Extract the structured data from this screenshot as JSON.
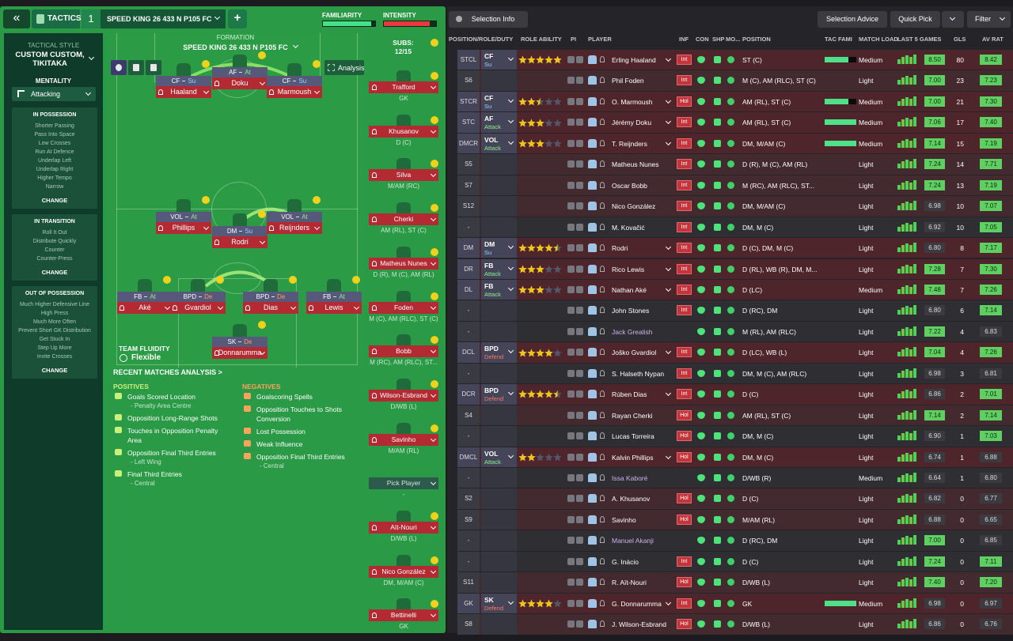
{
  "header": {
    "back": "«",
    "tactics": "TACTICS",
    "number": "1",
    "tactic_name": "SPEED KING 26 433 N P105 FC",
    "add": "+",
    "familiarity": "FAMILIARITY",
    "familiarity_value": 92,
    "intensity": "INTENSITY",
    "intensity_value": 88
  },
  "sidebar": {
    "style_label": "TACTICAL STYLE",
    "style": "CUSTOM CUSTOM, TIKITAKA",
    "mentality_label": "MENTALITY",
    "mentality": "Attacking",
    "sections": [
      {
        "title": "IN POSSESSION",
        "items": [
          "Shorter Passing",
          "Pass Into Space",
          "Low Crosses",
          "Run At Defence",
          "Underlap Left",
          "Underlap Right",
          "Higher Tempo",
          "Narrow"
        ],
        "change": "CHANGE"
      },
      {
        "title": "IN TRANSITION",
        "items": [
          "Roll It Out",
          "Distribute Quickly",
          "Counter",
          "Counter-Press"
        ],
        "change": "CHANGE"
      },
      {
        "title": "OUT OF POSSESSION",
        "items": [
          "Much Higher Defensive Line",
          "High Press",
          "Much More Often",
          "Prevent Short GK Distribution",
          "Get Stuck In",
          "Step Up More",
          "Invite Crosses"
        ],
        "change": "CHANGE"
      }
    ]
  },
  "pitch": {
    "formation_label": "FORMATION",
    "formation": "SPEED KING 26 433 N P105 FC",
    "analysis": "Analysis",
    "subs_label": "SUBS:",
    "subs_count": "12/15",
    "fluidity_label": "TEAM FLUIDITY",
    "fluidity": "Flexible",
    "players": [
      {
        "role": "CF",
        "duty": "Su",
        "name": "Haaland"
      },
      {
        "role": "AF",
        "duty": "At",
        "name": "Doku"
      },
      {
        "role": "CF",
        "duty": "Su",
        "name": "Marmoush"
      },
      {
        "role": "VOL",
        "duty": "At",
        "name": "Phillips"
      },
      {
        "role": "DM",
        "duty": "Su",
        "name": "Rodri"
      },
      {
        "role": "VOL",
        "duty": "At",
        "name": "Reijnders"
      },
      {
        "role": "FB",
        "duty": "At",
        "name": "Aké"
      },
      {
        "role": "BPD",
        "duty": "De",
        "name": "Gvardiol"
      },
      {
        "role": "BPD",
        "duty": "De",
        "name": "Dias"
      },
      {
        "role": "FB",
        "duty": "At",
        "name": "Lewis"
      },
      {
        "role": "SK",
        "duty": "De",
        "name": "Donnarumma"
      }
    ]
  },
  "subs": [
    {
      "name": "Trafford",
      "pos": "GK"
    },
    {
      "name": "Khusanov",
      "pos": "D (C)"
    },
    {
      "name": "Silva",
      "pos": "M/AM (RC)"
    },
    {
      "name": "Cherki",
      "pos": "AM (RL), ST (C)"
    },
    {
      "name": "Matheus Nunes",
      "pos": "D (R), M (C), AM (RL)"
    },
    {
      "name": "Foden",
      "pos": "M (C), AM (RLC), ST (C)"
    },
    {
      "name": "Bobb",
      "pos": "M (RC), AM (RLC), ST..."
    },
    {
      "name": "Wilson-Esbrand",
      "pos": "D/WB (L)"
    },
    {
      "name": "Savinho",
      "pos": "M/AM (RL)"
    },
    {
      "name": "Pick Player",
      "pos": "-"
    },
    {
      "name": "Aït-Nouri",
      "pos": "D/WB (L)"
    },
    {
      "name": "Nico González",
      "pos": "DM, M/AM (C)"
    },
    {
      "name": "Bettinelli",
      "pos": "GK"
    }
  ],
  "analysis": {
    "title": "RECENT MATCHES ANALYSIS >",
    "positives_label": "POSITIVES",
    "negatives_label": "NEGATIVES",
    "positives": [
      {
        "text": "Goals Scored Location",
        "sub": "- Penalty Area Centre"
      },
      {
        "text": "Opposition Long-Range Shots"
      },
      {
        "text": "Touches in Opposition Penalty Area"
      },
      {
        "text": "Opposition Final Third Entries",
        "sub": "- Left Wing"
      },
      {
        "text": "Final Third Entries",
        "sub": "- Central"
      }
    ],
    "negatives": [
      {
        "text": "Goalscoring Spells"
      },
      {
        "text": "Opposition Touches to Shots Conversion"
      },
      {
        "text": "Lost Possession"
      },
      {
        "text": "Weak Influence"
      },
      {
        "text": "Opposition Final Third Entries",
        "sub": "- Central"
      }
    ]
  },
  "toolbar": {
    "selection_info": "Selection Info",
    "selection_advice": "Selection Advice",
    "quick_pick": "Quick Pick",
    "filter": "Filter"
  },
  "table": {
    "columns": [
      "POSITION/ROLE/DUTY",
      "ROLE ABILITY",
      "PI",
      "PLAYER",
      "INF",
      "CON",
      "SHP",
      "MO...",
      "POSITION",
      "TAC FAMI",
      "MATCH LOAD",
      "LAST 5 GAMES",
      "GLS",
      "AV RAT"
    ],
    "rows": [
      {
        "pos": "STCL",
        "role": "CF",
        "duty": "Su",
        "ability": 5,
        "name": "Erling Haaland",
        "inf": "Int",
        "position": "ST (C)",
        "tac_fami": 75,
        "load": "Medium",
        "form": "8.50",
        "gls": "80",
        "avrat": "8.42"
      },
      {
        "pos": "S6",
        "name": "Phil Foden",
        "inf": "Int",
        "position": "M (C), AM (RLC), ST (C)",
        "load": "Light",
        "form": "7.00",
        "gls": "23",
        "avrat": "7.23"
      },
      {
        "pos": "STCR",
        "role": "CF",
        "duty": "Su",
        "ability": 2.5,
        "name": "O. Marmoush",
        "inf": "Hol",
        "position": "AM (RL), ST (C)",
        "tac_fami": 75,
        "load": "Medium",
        "form": "7.00",
        "gls": "21",
        "avrat": "7.30"
      },
      {
        "pos": "STC",
        "role": "AF",
        "duty": "Attack",
        "ability": 3,
        "name": "Jérémy Doku",
        "inf": "Int",
        "position": "AM (RL), ST (C)",
        "tac_fami": 100,
        "load": "Medium",
        "form": "7.06",
        "gls": "17",
        "avrat": "7.40"
      },
      {
        "pos": "DMCR",
        "role": "VOL",
        "duty": "Attack",
        "ability": 3,
        "name": "T. Reijnders",
        "inf": "Int",
        "position": "DM, M/AM (C)",
        "tac_fami": 100,
        "load": "Medium",
        "form": "7.14",
        "gls": "15",
        "avrat": "7.19"
      },
      {
        "pos": "S5",
        "name": "Matheus Nunes",
        "inf": "Int",
        "position": "D (R), M (C), AM (RL)",
        "load": "Light",
        "form": "7.24",
        "gls": "14",
        "avrat": "7.71"
      },
      {
        "pos": "S7",
        "name": "Oscar Bobb",
        "inf": "Int",
        "position": "M (RC), AM (RLC), ST...",
        "load": "Light",
        "form": "7.24",
        "gls": "13",
        "avrat": "7.19"
      },
      {
        "pos": "S12",
        "name": "Nico González",
        "inf": "Int",
        "position": "DM, M/AM (C)",
        "load": "Light",
        "form": "6.98",
        "gls": "10",
        "avrat": "7.07"
      },
      {
        "pos": "-",
        "name": "M. Kovačić",
        "inf": "Int",
        "position": "DM, M (C)",
        "load": "Light",
        "form": "6.92",
        "gls": "10",
        "avrat": "7.05"
      },
      {
        "pos": "DM",
        "role": "DM",
        "duty": "Su",
        "ability": 4.5,
        "name": "Rodri",
        "inf": "Int",
        "position": "D (C), DM, M (C)",
        "load": "Light",
        "form": "6.80",
        "gls": "8",
        "avrat": "7.17"
      },
      {
        "pos": "DR",
        "role": "FB",
        "duty": "Attack",
        "ability": 3,
        "name": "Rico Lewis",
        "inf": "Int",
        "position": "D (RL), WB (R), DM, M...",
        "load": "Light",
        "form": "7.28",
        "gls": "7",
        "avrat": "7.30"
      },
      {
        "pos": "DL",
        "role": "FB",
        "duty": "Attack",
        "ability": 3,
        "name": "Nathan Aké",
        "inf": "Int",
        "position": "D (LC)",
        "load": "Medium",
        "form": "7.48",
        "gls": "7",
        "avrat": "7.26"
      },
      {
        "pos": "-",
        "name": "John Stones",
        "inf": "Int",
        "position": "D (RC), DM",
        "load": "Light",
        "form": "6.80",
        "gls": "6",
        "avrat": "7.14"
      },
      {
        "pos": "-",
        "name": "Jack Grealish",
        "name_color": "#c9b3ea",
        "position": "M (RL), AM (RLC)",
        "load": "Light",
        "form": "7.22",
        "gls": "4",
        "avrat": "6.83"
      },
      {
        "pos": "DCL",
        "role": "BPD",
        "duty": "Defend",
        "ability": 4,
        "name": "Joško Gvardiol",
        "inf": "Int",
        "position": "D (LC), WB (L)",
        "load": "Light",
        "form": "7.04",
        "gls": "4",
        "avrat": "7.26"
      },
      {
        "pos": "-",
        "name": "S. Halseth Nypan",
        "inf": "Int",
        "position": "DM, M (C), AM (RLC)",
        "load": "Light",
        "form": "6.98",
        "gls": "3",
        "avrat": "6.81"
      },
      {
        "pos": "DCR",
        "role": "BPD",
        "duty": "Defend",
        "ability": 4.5,
        "name": "Rúben Dias",
        "inf": "Int",
        "position": "D (C)",
        "load": "Light",
        "form": "6.86",
        "gls": "2",
        "avrat": "7.01"
      },
      {
        "pos": "S4",
        "name": "Rayan Cherki",
        "inf": "Hol",
        "position": "AM (RL), ST (C)",
        "load": "Light",
        "form": "7.14",
        "gls": "2",
        "avrat": "7.14"
      },
      {
        "pos": "-",
        "name": "Lucas Torreira",
        "inf": "Hol",
        "position": "DM, M (C)",
        "load": "Light",
        "form": "6.90",
        "gls": "1",
        "avrat": "7.03"
      },
      {
        "pos": "DMCL",
        "role": "VOL",
        "duty": "Attack",
        "ability": 2,
        "name": "Kalvin Phillips",
        "inf": "Hol",
        "position": "DM, M (C)",
        "load": "Light",
        "form": "6.74",
        "gls": "1",
        "avrat": "6.88"
      },
      {
        "pos": "-",
        "name": "Issa Kaboré",
        "name_color": "#c9b3ea",
        "position": "D/WB (R)",
        "load": "Medium",
        "form": "6.64",
        "gls": "1",
        "avrat": "6.80"
      },
      {
        "pos": "S2",
        "name": "A. Khusanov",
        "inf": "Hol",
        "position": "D (C)",
        "load": "Light",
        "form": "6.82",
        "gls": "0",
        "avrat": "6.77"
      },
      {
        "pos": "S9",
        "name": "Savinho",
        "inf": "Hol",
        "position": "M/AM (RL)",
        "load": "Light",
        "form": "6.88",
        "gls": "0",
        "avrat": "6.65"
      },
      {
        "pos": "-",
        "name": "Manuel Akanji",
        "name_color": "#c9b3ea",
        "position": "D (RC), DM",
        "load": "Light",
        "form": "7.00",
        "gls": "0",
        "avrat": "6.85"
      },
      {
        "pos": "-",
        "name": "G. Inácio",
        "inf": "Int",
        "position": "D (C)",
        "load": "Light",
        "form": "7.24",
        "gls": "0",
        "avrat": "7.11"
      },
      {
        "pos": "S11",
        "name": "R. Aït-Nouri",
        "inf": "Hol",
        "position": "D/WB (L)",
        "load": "Light",
        "form": "7.40",
        "gls": "0",
        "avrat": "7.20"
      },
      {
        "pos": "GK",
        "role": "SK",
        "duty": "Defend",
        "ability": 4,
        "name": "G. Donnarumma",
        "inf": "Int",
        "position": "GK",
        "tac_fami": 100,
        "load": "Medium",
        "form": "6.98",
        "gls": "0",
        "avrat": "6.97"
      },
      {
        "pos": "S8",
        "name": "J. Wilson-Esbrand",
        "inf": "Hol",
        "position": "D/WB (L)",
        "load": "Light",
        "form": "6.86",
        "gls": "0",
        "avrat": "6.76"
      }
    ]
  }
}
